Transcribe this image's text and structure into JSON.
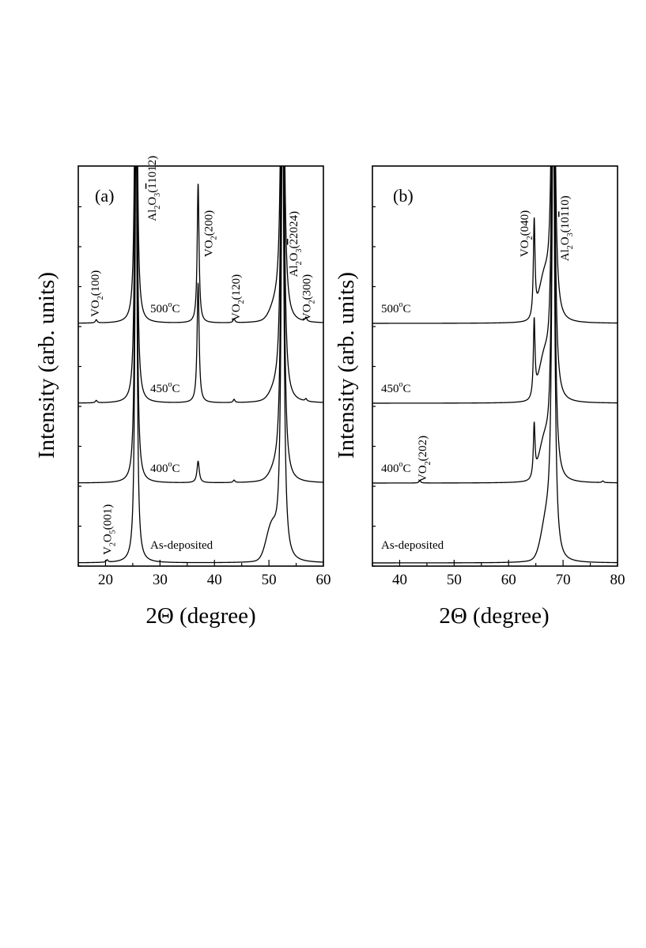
{
  "figure": {
    "ylabel": "Intensity (arb. units)",
    "xlabel": "2Θ (degree)"
  },
  "chart_data": [
    {
      "type": "line",
      "panel": "(a)",
      "title": "",
      "xlabel": "2Θ (degree)",
      "ylabel": "Intensity (arb. units)",
      "xlim": [
        15,
        60
      ],
      "ylim": [
        0,
        5
      ],
      "xticks": [
        20,
        30,
        40,
        50,
        60
      ],
      "series": [
        {
          "name": "As-deposited",
          "label": "As-deposited",
          "offset": 0,
          "baseline": 0.02,
          "shoulder": {
            "center": 50.5,
            "height": 0.4
          },
          "peaks": [
            {
              "x": 20.3,
              "height": 0.03,
              "width": 0.2
            },
            {
              "x": 25.6,
              "height": 6.0,
              "width": 0.22
            },
            {
              "x": 52.5,
              "height": 6.0,
              "width": 0.3
            }
          ]
        },
        {
          "name": "400oC",
          "label": "400",
          "offset": 1,
          "baseline": 0.02,
          "shoulder": {
            "center": 51.2,
            "height": 0.1
          },
          "peaks": [
            {
              "x": 25.6,
              "height": 6.0,
              "width": 0.22
            },
            {
              "x": 37.0,
              "height": 0.27,
              "width": 0.25
            },
            {
              "x": 43.6,
              "height": 0.03,
              "width": 0.2
            },
            {
              "x": 52.5,
              "height": 6.0,
              "width": 0.3
            }
          ]
        },
        {
          "name": "450oC",
          "label": "450",
          "offset": 2,
          "baseline": 0.02,
          "shoulder": {
            "center": 51.2,
            "height": 0.1
          },
          "peaks": [
            {
              "x": 18.3,
              "height": 0.03,
              "width": 0.2
            },
            {
              "x": 25.6,
              "height": 6.0,
              "width": 0.22
            },
            {
              "x": 37.0,
              "height": 1.5,
              "width": 0.22
            },
            {
              "x": 43.6,
              "height": 0.04,
              "width": 0.2
            },
            {
              "x": 52.5,
              "height": 6.0,
              "width": 0.3
            },
            {
              "x": 56.8,
              "height": 0.03,
              "width": 0.2
            }
          ]
        },
        {
          "name": "500oC",
          "label": "500",
          "offset": 3,
          "baseline": 0.02,
          "shoulder": {
            "center": 51.2,
            "height": 0.15
          },
          "peaks": [
            {
              "x": 18.3,
              "height": 0.04,
              "width": 0.2
            },
            {
              "x": 25.6,
              "height": 6.0,
              "width": 0.22
            },
            {
              "x": 37.0,
              "height": 1.75,
              "width": 0.2
            },
            {
              "x": 43.6,
              "height": 0.05,
              "width": 0.2
            },
            {
              "x": 52.5,
              "height": 6.0,
              "width": 0.3
            },
            {
              "x": 56.8,
              "height": 0.05,
              "width": 0.2
            }
          ]
        }
      ],
      "annotations": [
        {
          "id": "vo2-100",
          "x": 18.8,
          "level": 3.1,
          "parts": [
            "VO",
            "2",
            "(100)"
          ]
        },
        {
          "id": "al2o3-1012",
          "x": 29.2,
          "level": 4.3,
          "parts": [
            "Al",
            "2",
            "O",
            "3",
            "(̅",
            "1012)"
          ],
          "overline": "1"
        },
        {
          "id": "vo2-200",
          "x": 39.6,
          "level": 3.85,
          "parts": [
            "VO",
            "2",
            "(200)"
          ]
        },
        {
          "id": "vo2-120",
          "x": 44.6,
          "level": 3.05,
          "parts": [
            "VO",
            "2",
            "(120)"
          ]
        },
        {
          "id": "al2o3-2024",
          "x": 55.2,
          "level": 3.6,
          "parts": [
            "Al",
            "2",
            "O",
            "3",
            "(",
            "2024)"
          ],
          "overline": "2"
        },
        {
          "id": "vo2-300",
          "x": 57.6,
          "level": 3.05,
          "parts": [
            "VO",
            "2",
            "(300)"
          ]
        },
        {
          "id": "v2o5-001",
          "x": 21.0,
          "level": 0.12,
          "parts": [
            "V",
            "2",
            "O",
            "5",
            "(001)"
          ]
        }
      ]
    },
    {
      "type": "line",
      "panel": "(b)",
      "title": "",
      "xlabel": "2Θ (degree)",
      "ylabel": "Intensity (arb. units)",
      "xlim": [
        35,
        80
      ],
      "ylim": [
        0,
        5
      ],
      "xticks": [
        40,
        50,
        60,
        70,
        80
      ],
      "series": [
        {
          "name": "As-deposited",
          "label": "As-deposited",
          "offset": 0,
          "baseline": 0.02,
          "shoulder": {
            "center": 67.0,
            "height": 0.45
          },
          "peaks": [
            {
              "x": 68.2,
              "height": 6.0,
              "width": 0.3
            }
          ]
        },
        {
          "name": "400oC",
          "label": "400",
          "offset": 1,
          "baseline": 0.02,
          "shoulder": {
            "center": 66.6,
            "height": 0.45
          },
          "peaks": [
            {
              "x": 43.7,
              "height": 0.03,
              "width": 0.2
            },
            {
              "x": 64.7,
              "height": 0.65,
              "width": 0.18
            },
            {
              "x": 68.2,
              "height": 6.0,
              "width": 0.3
            },
            {
              "x": 77.3,
              "height": 0.02,
              "width": 0.2
            }
          ]
        },
        {
          "name": "450oC",
          "label": "450",
          "offset": 2,
          "baseline": 0.02,
          "shoulder": {
            "center": 66.6,
            "height": 0.5
          },
          "peaks": [
            {
              "x": 64.7,
              "height": 0.95,
              "width": 0.18
            },
            {
              "x": 68.2,
              "height": 6.0,
              "width": 0.3
            }
          ]
        },
        {
          "name": "500oC",
          "label": "500",
          "offset": 3,
          "baseline": 0.02,
          "shoulder": {
            "center": 66.6,
            "height": 0.5
          },
          "peaks": [
            {
              "x": 64.7,
              "height": 1.2,
              "width": 0.18
            },
            {
              "x": 68.2,
              "height": 6.0,
              "width": 0.3
            }
          ]
        }
      ],
      "annotations": [
        {
          "id": "vo2-040",
          "x": 63.6,
          "level": 3.85,
          "parts": [
            "VO",
            "2",
            "(040)"
          ]
        },
        {
          "id": "al2o3-1010",
          "x": 71.0,
          "level": 3.8,
          "parts": [
            "Al",
            "2",
            "O",
            "3",
            "(10",
            "10)"
          ],
          "overline": "1"
        },
        {
          "id": "vo2-202",
          "x": 44.9,
          "level": 1.03,
          "parts": [
            "VO",
            "2",
            "(202)"
          ]
        }
      ]
    }
  ],
  "labels": {
    "panel_a": "(a)",
    "panel_b": "(b)",
    "temp_unit_sup": "o",
    "temp_unit": "C"
  }
}
